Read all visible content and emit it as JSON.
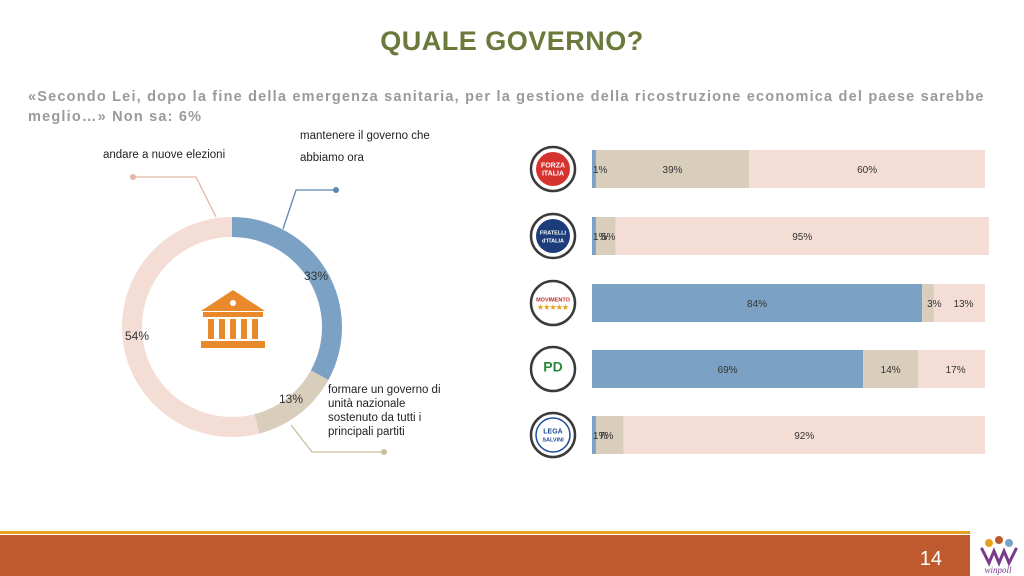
{
  "title": "QUALE GOVERNO?",
  "question": "«Secondo Lei, dopo la fine della emergenza sanitaria, per la gestione della ricostruzione economica del paese sarebbe meglio…» Non sa: 6%",
  "page_number": "14",
  "brand": "winpoll",
  "colors": {
    "blue": "#7ba2c4",
    "tan": "#d9cebb",
    "pink": "#f4ddd4",
    "title": "#6b7a3a",
    "footer": "#bf5a2e",
    "footer_accent": "#e7a11f",
    "icon": "#e8892b"
  },
  "icons": {
    "center": "bank-building-icon"
  },
  "chart_data": [
    {
      "type": "pie",
      "variant": "donut",
      "slices": [
        {
          "name": "mantenere il governo che abbiamo ora",
          "label_lines": [
            "mantenere il governo che",
            "abbiamo ora"
          ],
          "value": 33,
          "value_label": "33%",
          "color": "#7ba2c4"
        },
        {
          "name": "formare un governo di unità nazionale sostenuto da tutti i principali partiti",
          "label_lines": [
            "formare un governo di",
            "unità nazionale",
            "sostenuto da tutti i",
            "principali partiti"
          ],
          "value": 13,
          "value_label": "13%",
          "color": "#d9cebb"
        },
        {
          "name": "andare a nuove elezioni",
          "label_lines": [
            "andare a nuove elezioni"
          ],
          "value": 54,
          "value_label": "54%",
          "color": "#f4ddd4"
        }
      ]
    },
    {
      "type": "bar",
      "orientation": "horizontal",
      "stacked": true,
      "categories": [
        "Forza Italia",
        "Fratelli d'Italia",
        "Movimento 5 Stelle",
        "Partito Democratico",
        "Lega Salvini"
      ],
      "series": [
        {
          "name": "mantenere il governo che abbiamo ora",
          "color": "#7ba2c4",
          "values": [
            1,
            1,
            84,
            69,
            1
          ],
          "labels": [
            "1%",
            "1%",
            "84%",
            "69%",
            "1%"
          ]
        },
        {
          "name": "formare un governo di unità nazionale",
          "color": "#d9cebb",
          "values": [
            39,
            5,
            3,
            14,
            7
          ],
          "labels": [
            "39%",
            "5%",
            "3%",
            "14%",
            "7%"
          ]
        },
        {
          "name": "andare a nuove elezioni",
          "color": "#f4ddd4",
          "values": [
            60,
            95,
            13,
            17,
            92
          ],
          "labels": [
            "60%",
            "95%",
            "13%",
            "17%",
            "92%"
          ]
        }
      ],
      "logos": [
        {
          "lines": [
            "FORZA",
            "ITALIA"
          ]
        },
        {
          "lines": [
            "FRATELLI",
            "d'ITALIA"
          ]
        },
        {
          "lines": [
            "MOVIMENTO",
            "★★★★★"
          ]
        },
        {
          "lines": [
            "PD"
          ]
        },
        {
          "lines": [
            "LEGA",
            "SALVINI"
          ]
        }
      ],
      "xlim": [
        0,
        100
      ]
    }
  ]
}
